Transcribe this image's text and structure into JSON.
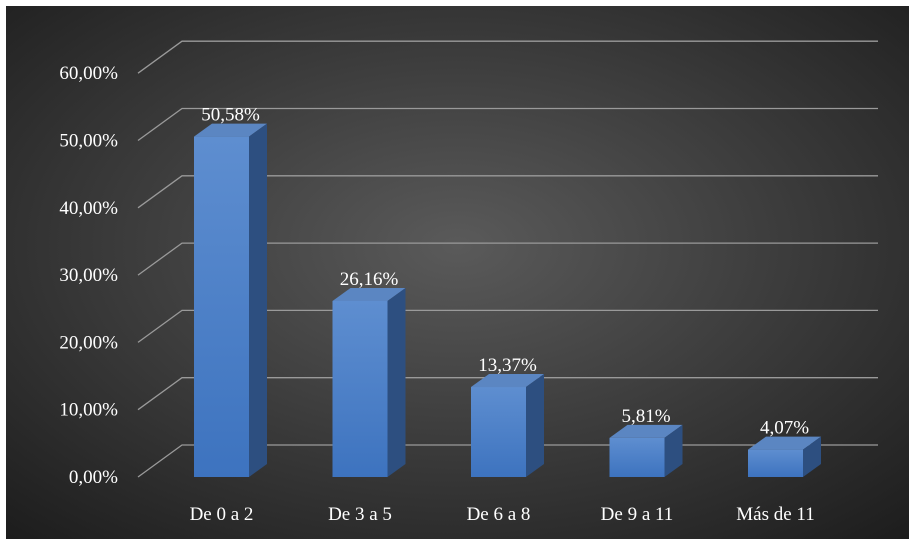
{
  "chart_data": {
    "type": "bar",
    "style": "3d-column",
    "categories": [
      "De 0 a 2",
      "De 3 a 5",
      "De 6 a 8",
      "De 9 a 11",
      "Más de 11"
    ],
    "values": [
      50.58,
      26.16,
      13.37,
      5.81,
      4.07
    ],
    "data_labels": [
      "50,58%",
      "26,16%",
      "13,37%",
      "5,81%",
      "4,07%"
    ],
    "y_ticks": [
      0,
      10,
      20,
      30,
      40,
      50,
      60
    ],
    "y_tick_labels": [
      "0,00%",
      "10,00%",
      "20,00%",
      "30,00%",
      "40,00%",
      "50,00%",
      "60,00%"
    ],
    "ylim": [
      0,
      60
    ],
    "grid": true,
    "legend": "none",
    "colors": {
      "background_center": "#5a5a5a",
      "background_edge": "#1c1c1c",
      "bar_front": "#4a7fc8",
      "bar_side": "#2d4f80",
      "bar_top": "#5b86c2",
      "gridline": "#9a9a9a",
      "text": "#ffffff"
    }
  }
}
